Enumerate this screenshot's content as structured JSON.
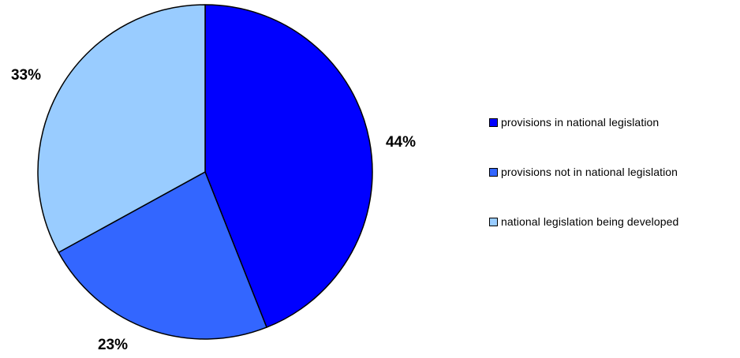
{
  "chart_data": {
    "type": "pie",
    "categories": [
      "provisions in national legislation",
      "provisions not in national legislation",
      "national legislation being developed"
    ],
    "values": [
      44,
      23,
      33
    ],
    "value_labels": [
      "44%",
      "23%",
      "33%"
    ],
    "colors": [
      "#0000FF",
      "#3366FF",
      "#99CCFF"
    ],
    "start_angle_deg": 0,
    "direction": "clockwise",
    "legend_position": "right"
  }
}
